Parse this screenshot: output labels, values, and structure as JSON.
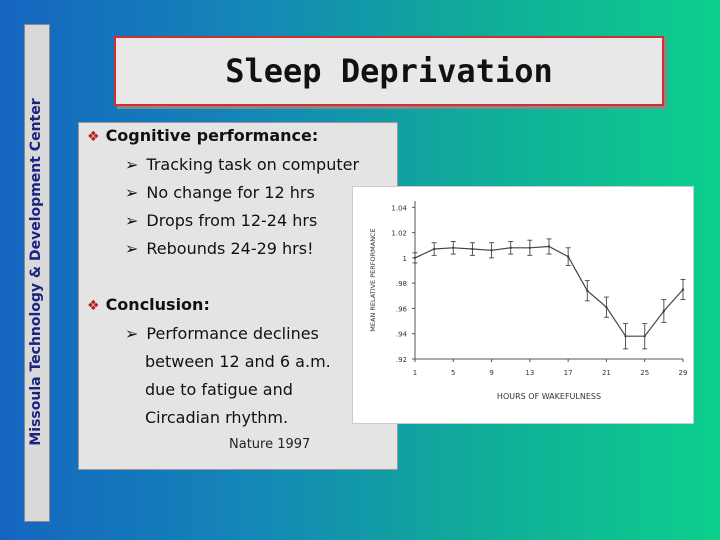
{
  "side_banner": "Missoula Technology & Development Center",
  "title": "Sleep Deprivation",
  "bullets": {
    "heading1": "Cognitive performance:",
    "sub1": "Tracking task on computer",
    "sub2": "No change for 12 hrs",
    "sub3": "Drops from 12-24 hrs",
    "sub4": "Rebounds 24-29 hrs!",
    "heading2": "Conclusion:",
    "sub5_line1": "Performance declines",
    "sub5_line2": "between 12 and 6 a.m.",
    "sub5_line3": "due to fatigue and",
    "sub5_line4": "Circadian rhythm.",
    "citation": "Nature 1997"
  },
  "chart_data": {
    "type": "line",
    "xlabel": "HOURS OF WAKEFULNESS",
    "ylabel": "MEAN RELATIVE PERFORMANCE",
    "x_ticks": [
      "1",
      "5",
      "9",
      "13",
      "17",
      "21",
      "25",
      "29"
    ],
    "y_ticks": [
      "1.04",
      "1.02",
      "1",
      ".98",
      ".96",
      ".94",
      ".92"
    ],
    "xlim": [
      1,
      29
    ],
    "ylim": [
      0.92,
      1.045
    ],
    "series": [
      {
        "x": [
          1,
          3,
          5,
          7,
          9,
          11,
          13,
          15,
          17,
          19,
          21,
          23,
          25,
          27,
          29
        ],
        "y": [
          1.0,
          1.007,
          1.008,
          1.007,
          1.006,
          1.008,
          1.008,
          1.009,
          1.001,
          0.974,
          0.961,
          0.938,
          0.938,
          0.958,
          0.975
        ],
        "err": [
          0.004,
          0.005,
          0.005,
          0.005,
          0.006,
          0.005,
          0.006,
          0.006,
          0.007,
          0.008,
          0.008,
          0.01,
          0.01,
          0.009,
          0.008
        ]
      }
    ],
    "colors": {
      "line": "#444444"
    }
  }
}
